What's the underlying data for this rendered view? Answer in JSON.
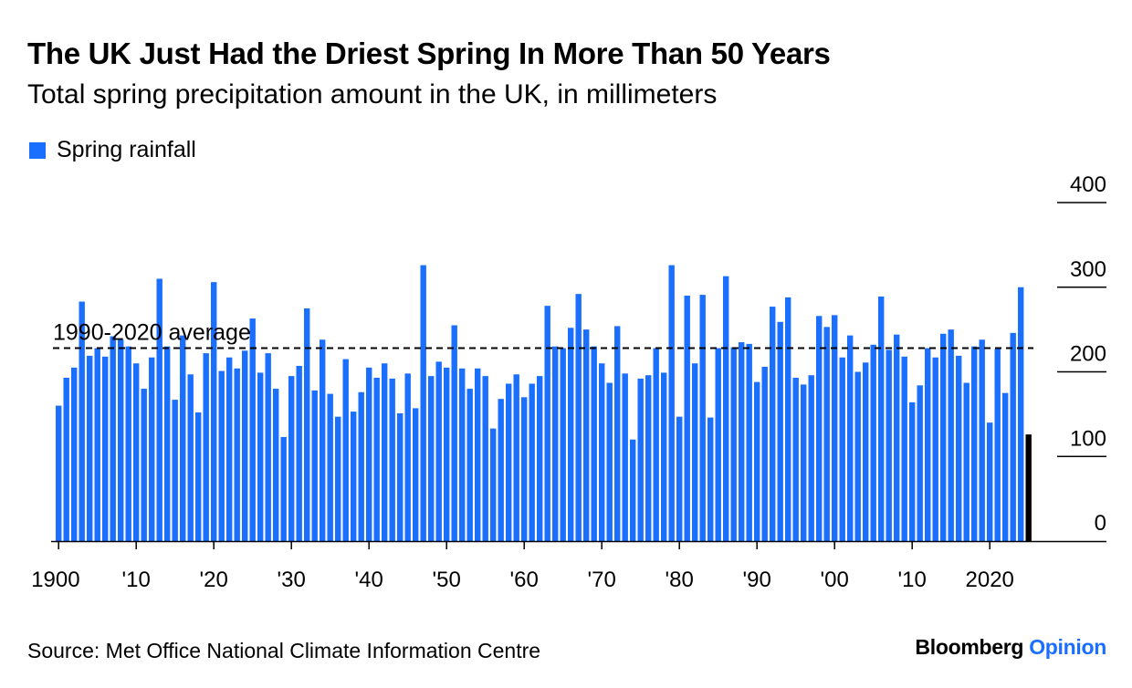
{
  "colors": {
    "bar": "#1a6fff",
    "highlight": "#000000",
    "text": "#000000",
    "brand_accent": "#1a6fff"
  },
  "brand": {
    "name": "Bloomberg",
    "section": "Opinion"
  },
  "source": "Source: Met Office National Climate Information Centre",
  "chart_data": {
    "type": "bar",
    "title": "The UK Just Had the Driest Spring In More Than 50 Years",
    "subtitle": "Total spring precipitation amount in the UK, in millimeters",
    "legend": {
      "entries": [
        "Spring rainfall"
      ],
      "placement": "top-left"
    },
    "x_start": 1900,
    "x_end": 2025,
    "x_ticks": [
      {
        "year": 1900,
        "label": "1900"
      },
      {
        "year": 1910,
        "label": "'10"
      },
      {
        "year": 1920,
        "label": "'20"
      },
      {
        "year": 1930,
        "label": "'30"
      },
      {
        "year": 1940,
        "label": "'40"
      },
      {
        "year": 1950,
        "label": "'50"
      },
      {
        "year": 1960,
        "label": "'60"
      },
      {
        "year": 1970,
        "label": "'70"
      },
      {
        "year": 1980,
        "label": "'80"
      },
      {
        "year": 1990,
        "label": "'90"
      },
      {
        "year": 2000,
        "label": "'00"
      },
      {
        "year": 2010,
        "label": "'10"
      },
      {
        "year": 2020,
        "label": "2020"
      }
    ],
    "y_ticks": [
      0,
      100,
      200,
      300,
      400
    ],
    "ylim": [
      0,
      400
    ],
    "y_axis_position": "right",
    "grid": false,
    "reference_line": {
      "label": "1990-2020 average",
      "value": 228
    },
    "highlight_year": 2025,
    "series": [
      {
        "name": "Spring rainfall",
        "values": [
          160,
          193,
          205,
          283,
          219,
          228,
          218,
          242,
          238,
          230,
          210,
          180,
          217,
          310,
          230,
          167,
          243,
          197,
          152,
          222,
          306,
          201,
          217,
          204,
          225,
          263,
          199,
          222,
          180,
          123,
          195,
          207,
          275,
          178,
          238,
          174,
          147,
          215,
          153,
          176,
          205,
          193,
          210,
          192,
          151,
          198,
          157,
          326,
          195,
          212,
          205,
          255,
          204,
          180,
          204,
          195,
          133,
          168,
          186,
          197,
          170,
          186,
          195,
          278,
          230,
          228,
          252,
          292,
          250,
          230,
          210,
          187,
          254,
          198,
          120,
          192,
          196,
          228,
          199,
          326,
          147,
          290,
          210,
          291,
          146,
          228,
          313,
          229,
          235,
          233,
          188,
          206,
          277,
          259,
          288,
          193,
          185,
          196,
          266,
          253,
          267,
          217,
          243,
          200,
          211,
          232,
          289,
          226,
          244,
          218,
          164,
          184,
          228,
          217,
          245,
          250,
          219,
          187,
          230,
          238,
          140,
          227,
          175,
          246,
          300,
          126
        ]
      }
    ]
  }
}
